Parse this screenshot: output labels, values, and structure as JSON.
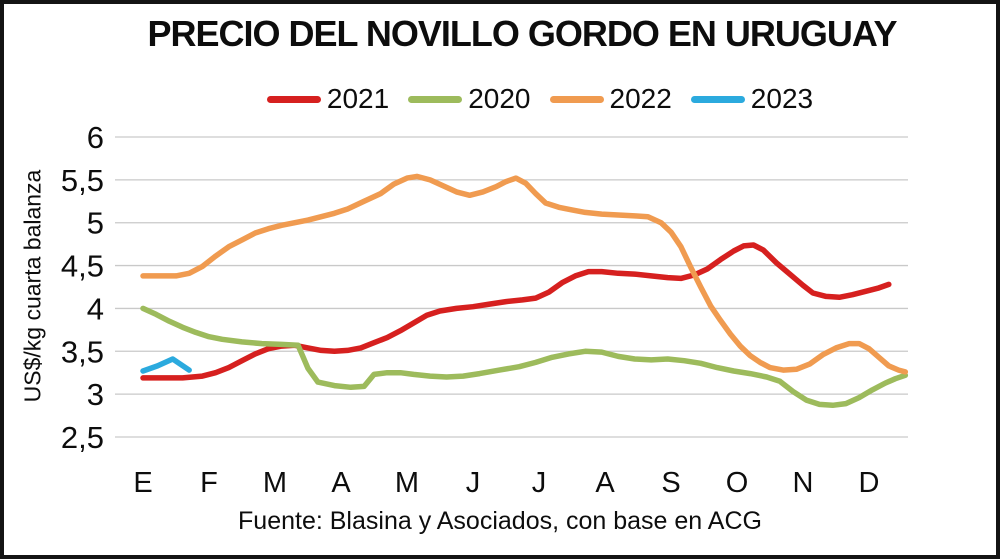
{
  "chart_data": {
    "type": "line",
    "title": "PRECIO DEL NOVILLO GORDO EN URUGUAY",
    "ylabel": "US$/kg cuarta balanza",
    "xlabel": "",
    "source": "Fuente: Blasina y Asociados, con base en ACG",
    "categories": [
      "E",
      "F",
      "M",
      "A",
      "M",
      "J",
      "J",
      "A",
      "S",
      "O",
      "N",
      "D"
    ],
    "ylim": [
      2.5,
      6
    ],
    "grid": "horizontal",
    "legend_position": "top",
    "x_unit": "month index (0=enero ... 11=diciembre), weekly resolution",
    "y_ticks": [
      {
        "label": "6",
        "value": 6
      },
      {
        "label": "5,5",
        "value": 5.5
      },
      {
        "label": "5",
        "value": 5
      },
      {
        "label": "4,5",
        "value": 4.5
      },
      {
        "label": "4",
        "value": 4
      },
      {
        "label": "3,5",
        "value": 3.5
      },
      {
        "label": "3",
        "value": 3
      },
      {
        "label": "2,5",
        "value": 2.5
      }
    ],
    "gridline_color": "#c9c9c9",
    "series": [
      {
        "name": "2021",
        "color": "#d6201f",
        "points": [
          [
            0,
            3.19
          ],
          [
            0.3,
            3.19
          ],
          [
            0.6,
            3.19
          ],
          [
            0.9,
            3.21
          ],
          [
            1.1,
            3.25
          ],
          [
            1.3,
            3.31
          ],
          [
            1.5,
            3.39
          ],
          [
            1.7,
            3.47
          ],
          [
            1.9,
            3.53
          ],
          [
            2.1,
            3.56
          ],
          [
            2.3,
            3.57
          ],
          [
            2.5,
            3.54
          ],
          [
            2.7,
            3.51
          ],
          [
            2.9,
            3.5
          ],
          [
            3.1,
            3.51
          ],
          [
            3.3,
            3.54
          ],
          [
            3.5,
            3.6
          ],
          [
            3.7,
            3.66
          ],
          [
            3.9,
            3.74
          ],
          [
            4.1,
            3.83
          ],
          [
            4.3,
            3.92
          ],
          [
            4.5,
            3.97
          ],
          [
            4.75,
            4.0
          ],
          [
            5.0,
            4.02
          ],
          [
            5.25,
            4.05
          ],
          [
            5.5,
            4.08
          ],
          [
            5.75,
            4.1
          ],
          [
            5.95,
            4.12
          ],
          [
            6.15,
            4.19
          ],
          [
            6.35,
            4.3
          ],
          [
            6.55,
            4.38
          ],
          [
            6.75,
            4.43
          ],
          [
            6.95,
            4.43
          ],
          [
            7.2,
            4.41
          ],
          [
            7.45,
            4.4
          ],
          [
            7.7,
            4.38
          ],
          [
            7.95,
            4.36
          ],
          [
            8.15,
            4.35
          ],
          [
            8.35,
            4.39
          ],
          [
            8.55,
            4.46
          ],
          [
            8.75,
            4.57
          ],
          [
            8.95,
            4.67
          ],
          [
            9.1,
            4.73
          ],
          [
            9.25,
            4.74
          ],
          [
            9.4,
            4.68
          ],
          [
            9.6,
            4.53
          ],
          [
            9.8,
            4.4
          ],
          [
            10.0,
            4.27
          ],
          [
            10.15,
            4.18
          ],
          [
            10.35,
            4.14
          ],
          [
            10.55,
            4.13
          ],
          [
            10.75,
            4.16
          ],
          [
            10.95,
            4.2
          ],
          [
            11.15,
            4.24
          ],
          [
            11.3,
            4.28
          ]
        ]
      },
      {
        "name": "2020",
        "color": "#9dbb5c",
        "points": [
          [
            0,
            4.0
          ],
          [
            0.2,
            3.93
          ],
          [
            0.4,
            3.85
          ],
          [
            0.6,
            3.78
          ],
          [
            0.8,
            3.72
          ],
          [
            1.0,
            3.67
          ],
          [
            1.2,
            3.64
          ],
          [
            1.5,
            3.61
          ],
          [
            1.8,
            3.59
          ],
          [
            2.1,
            3.58
          ],
          [
            2.35,
            3.57
          ],
          [
            2.5,
            3.3
          ],
          [
            2.65,
            3.14
          ],
          [
            2.9,
            3.1
          ],
          [
            3.15,
            3.08
          ],
          [
            3.35,
            3.09
          ],
          [
            3.5,
            3.23
          ],
          [
            3.7,
            3.25
          ],
          [
            3.9,
            3.25
          ],
          [
            4.1,
            3.23
          ],
          [
            4.35,
            3.21
          ],
          [
            4.6,
            3.2
          ],
          [
            4.85,
            3.21
          ],
          [
            5.1,
            3.24
          ],
          [
            5.4,
            3.28
          ],
          [
            5.7,
            3.32
          ],
          [
            5.95,
            3.37
          ],
          [
            6.2,
            3.43
          ],
          [
            6.45,
            3.47
          ],
          [
            6.7,
            3.5
          ],
          [
            6.95,
            3.49
          ],
          [
            7.2,
            3.44
          ],
          [
            7.45,
            3.41
          ],
          [
            7.7,
            3.4
          ],
          [
            7.95,
            3.41
          ],
          [
            8.2,
            3.39
          ],
          [
            8.45,
            3.36
          ],
          [
            8.7,
            3.31
          ],
          [
            8.95,
            3.27
          ],
          [
            9.2,
            3.24
          ],
          [
            9.45,
            3.2
          ],
          [
            9.65,
            3.15
          ],
          [
            9.85,
            3.03
          ],
          [
            10.05,
            2.93
          ],
          [
            10.25,
            2.88
          ],
          [
            10.45,
            2.87
          ],
          [
            10.65,
            2.89
          ],
          [
            10.85,
            2.96
          ],
          [
            11.05,
            3.05
          ],
          [
            11.25,
            3.13
          ],
          [
            11.4,
            3.18
          ],
          [
            11.55,
            3.22
          ]
        ]
      },
      {
        "name": "2022",
        "color": "#f09b50",
        "points": [
          [
            0,
            4.38
          ],
          [
            0.25,
            4.38
          ],
          [
            0.5,
            4.38
          ],
          [
            0.7,
            4.41
          ],
          [
            0.9,
            4.49
          ],
          [
            1.1,
            4.61
          ],
          [
            1.3,
            4.72
          ],
          [
            1.5,
            4.8
          ],
          [
            1.7,
            4.88
          ],
          [
            1.9,
            4.93
          ],
          [
            2.1,
            4.97
          ],
          [
            2.3,
            5.0
          ],
          [
            2.5,
            5.03
          ],
          [
            2.7,
            5.07
          ],
          [
            2.9,
            5.11
          ],
          [
            3.1,
            5.16
          ],
          [
            3.35,
            5.25
          ],
          [
            3.6,
            5.34
          ],
          [
            3.8,
            5.45
          ],
          [
            4.0,
            5.52
          ],
          [
            4.15,
            5.54
          ],
          [
            4.35,
            5.5
          ],
          [
            4.55,
            5.43
          ],
          [
            4.75,
            5.36
          ],
          [
            4.95,
            5.32
          ],
          [
            5.15,
            5.36
          ],
          [
            5.35,
            5.42
          ],
          [
            5.5,
            5.48
          ],
          [
            5.65,
            5.52
          ],
          [
            5.8,
            5.46
          ],
          [
            5.95,
            5.34
          ],
          [
            6.1,
            5.23
          ],
          [
            6.3,
            5.18
          ],
          [
            6.5,
            5.15
          ],
          [
            6.7,
            5.12
          ],
          [
            6.95,
            5.1
          ],
          [
            7.2,
            5.09
          ],
          [
            7.45,
            5.08
          ],
          [
            7.65,
            5.07
          ],
          [
            7.85,
            5.0
          ],
          [
            8.0,
            4.89
          ],
          [
            8.15,
            4.72
          ],
          [
            8.3,
            4.48
          ],
          [
            8.45,
            4.25
          ],
          [
            8.6,
            4.03
          ],
          [
            8.75,
            3.86
          ],
          [
            8.9,
            3.7
          ],
          [
            9.05,
            3.56
          ],
          [
            9.2,
            3.45
          ],
          [
            9.35,
            3.37
          ],
          [
            9.5,
            3.31
          ],
          [
            9.7,
            3.28
          ],
          [
            9.9,
            3.29
          ],
          [
            10.1,
            3.35
          ],
          [
            10.3,
            3.46
          ],
          [
            10.5,
            3.54
          ],
          [
            10.7,
            3.59
          ],
          [
            10.85,
            3.59
          ],
          [
            11.0,
            3.53
          ],
          [
            11.15,
            3.43
          ],
          [
            11.3,
            3.33
          ],
          [
            11.45,
            3.28
          ],
          [
            11.55,
            3.26
          ]
        ]
      },
      {
        "name": "2023",
        "color": "#2baade",
        "points": [
          [
            0,
            3.27
          ],
          [
            0.22,
            3.33
          ],
          [
            0.45,
            3.41
          ],
          [
            0.7,
            3.28
          ]
        ]
      }
    ]
  }
}
